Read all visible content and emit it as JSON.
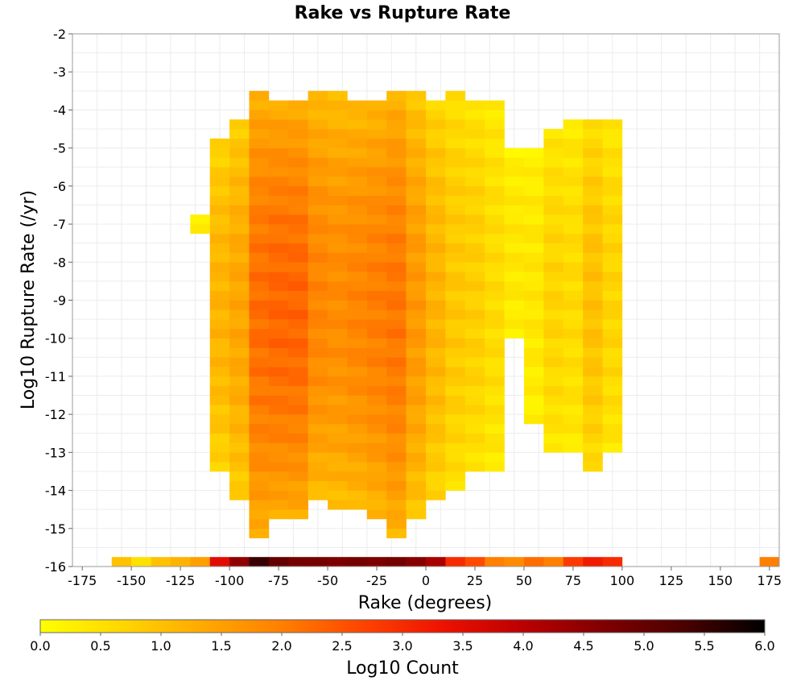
{
  "chart_data": {
    "type": "heatmap",
    "title": "Rake vs Rupture Rate",
    "xlabel": "Rake (degrees)",
    "ylabel": "Log10 Rupture Rate (/yr)",
    "xlim": [
      -180,
      180
    ],
    "ylim": [
      -16,
      -2
    ],
    "x_ticks": [
      -175,
      -150,
      -125,
      -100,
      -75,
      -50,
      -25,
      0,
      25,
      50,
      75,
      100,
      125,
      150,
      175
    ],
    "y_ticks": [
      -16,
      -15,
      -14,
      -13,
      -12,
      -11,
      -10,
      -9,
      -8,
      -7,
      -6,
      -5,
      -4,
      -3,
      -2
    ],
    "bin_width_x": 10,
    "bin_width_y": 0.25,
    "grid": true,
    "colorbar": {
      "label": "Log10 Count",
      "min": 0.0,
      "max": 6.0,
      "ticks": [
        "0.0",
        "0.5",
        "1.0",
        "1.5",
        "2.0",
        "2.5",
        "3.0",
        "3.5",
        "4.0",
        "4.5",
        "5.0",
        "5.5",
        "6.0"
      ],
      "colors": [
        "#ffff00",
        "#ffd700",
        "#ffaa00",
        "#ff7f00",
        "#ff4400",
        "#ee1100",
        "#bb0000",
        "#800000",
        "#4a0000",
        "#000000"
      ]
    },
    "bottom_row": {
      "y": -16.0,
      "x": [
        -155,
        -145,
        -135,
        -125,
        -115,
        -105,
        -95,
        -85,
        -75,
        -65,
        -55,
        -45,
        -35,
        -25,
        -15,
        -5,
        5,
        15,
        25,
        35,
        45,
        55,
        65,
        75,
        85,
        95,
        175
      ],
      "values": [
        1.0,
        0.5,
        1.0,
        1.2,
        1.5,
        3.5,
        4.5,
        5.5,
        5.0,
        4.8,
        4.8,
        4.7,
        4.8,
        4.7,
        4.8,
        4.6,
        4.2,
        3.0,
        2.6,
        2.0,
        1.8,
        2.2,
        2.0,
        2.8,
        3.2,
        3.0,
        2.0
      ]
    },
    "columns": [
      {
        "x": -115,
        "y_min": -7.25,
        "y_max": -6.75,
        "value": 0.4
      },
      {
        "x": -105,
        "y_min": -13.5,
        "y_max": -4.75,
        "value": 1.2
      },
      {
        "x": -95,
        "y_min": -14.25,
        "y_max": -4.25,
        "value": 1.4
      },
      {
        "x": -85,
        "y_min": -15.25,
        "y_max": -3.5,
        "value": 2.2
      },
      {
        "x": -75,
        "y_min": -14.75,
        "y_max": -3.75,
        "value": 2.3
      },
      {
        "x": -65,
        "y_min": -14.75,
        "y_max": -3.75,
        "value": 2.3
      },
      {
        "x": -55,
        "y_min": -14.25,
        "y_max": -3.5,
        "value": 1.9
      },
      {
        "x": -45,
        "y_min": -14.5,
        "y_max": -3.5,
        "value": 1.8
      },
      {
        "x": -35,
        "y_min": -14.5,
        "y_max": -3.75,
        "value": 1.9
      },
      {
        "x": -25,
        "y_min": -14.75,
        "y_max": -3.75,
        "value": 2.0
      },
      {
        "x": -15,
        "y_min": -15.25,
        "y_max": -3.5,
        "value": 2.1
      },
      {
        "x": -5,
        "y_min": -14.75,
        "y_max": -3.5,
        "value": 1.6
      },
      {
        "x": 5,
        "y_min": -14.25,
        "y_max": -3.75,
        "value": 1.2
      },
      {
        "x": 15,
        "y_min": -14.0,
        "y_max": -3.5,
        "value": 0.9
      },
      {
        "x": 25,
        "y_min": -13.5,
        "y_max": -3.75,
        "value": 0.8
      },
      {
        "x": 35,
        "y_min": -13.5,
        "y_max": -3.75,
        "value": 0.6
      },
      {
        "x": 45,
        "y_min": -10.0,
        "y_max": -5.0,
        "value": 0.4
      },
      {
        "x": 55,
        "y_min": -12.25,
        "y_max": -5.0,
        "value": 0.4
      },
      {
        "x": 65,
        "y_min": -13.0,
        "y_max": -4.5,
        "value": 0.7
      },
      {
        "x": 75,
        "y_min": -13.0,
        "y_max": -4.25,
        "value": 0.6
      },
      {
        "x": 85,
        "y_min": -13.5,
        "y_max": -4.25,
        "value": 1.0
      },
      {
        "x": 95,
        "y_min": -13.0,
        "y_max": -4.25,
        "value": 0.7
      }
    ]
  }
}
